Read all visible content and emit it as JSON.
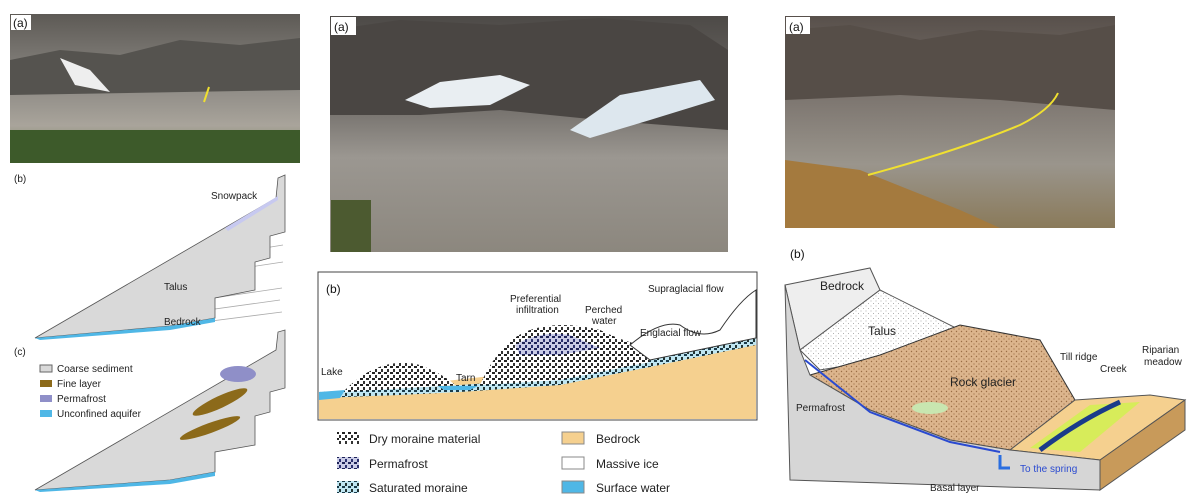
{
  "left": {
    "photo_label": "(a)",
    "diagram_b": {
      "label": "(b)",
      "snowpack": "Snowpack",
      "talus": "Talus",
      "bedrock": "Bedrock"
    },
    "diagram_c": {
      "label": "(c)",
      "legend": [
        "Coarse sediment",
        "Fine layer",
        "Permafrost",
        "Unconfined aquifer"
      ]
    }
  },
  "middle": {
    "photo_label": "(a)",
    "diagram": {
      "label": "(b)",
      "preferential_infiltration": [
        "Preferential",
        "infiltration"
      ],
      "perched_water": [
        "Perched",
        "water"
      ],
      "supraglacial_flow": "Supraglacial flow",
      "englacial_flow": "Englacial flow",
      "lake": "Lake",
      "tarn": "Tarn"
    },
    "legend": [
      "Dry moraine material",
      "Permafrost",
      "Saturated moraine",
      "Bedrock",
      "Massive ice",
      "Surface water"
    ]
  },
  "right": {
    "photo_label": "(a)",
    "diagram": {
      "label": "(b)",
      "bedrock": "Bedrock",
      "talus": "Talus",
      "rock_glacier": "Rock glacier",
      "till_ridge": "Till ridge",
      "creek": "Creek",
      "riparian_meadow": [
        "Riparian",
        "meadow"
      ],
      "permafrost": "Permafrost",
      "to_the_spring": "To the spring",
      "basal_layer": "Basal layer"
    }
  }
}
